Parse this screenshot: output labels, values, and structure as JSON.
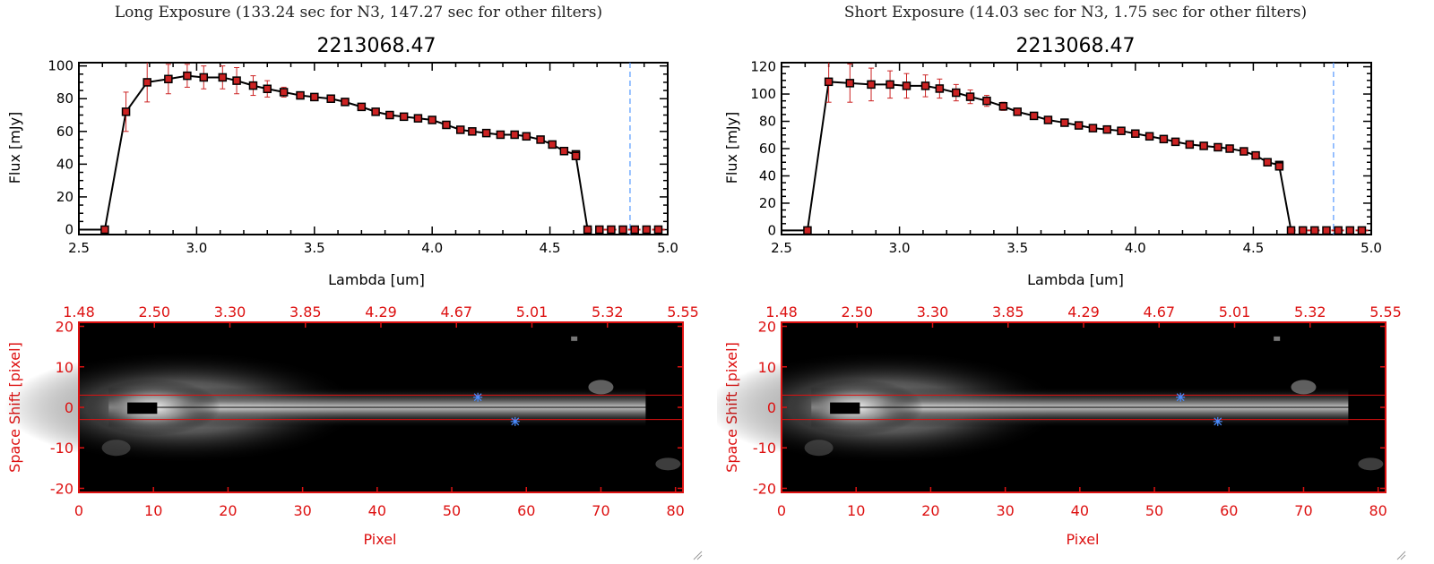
{
  "panels": [
    {
      "header": "Long Exposure (133.24 sec for N3, 147.27 sec for other filters)",
      "spectrum": {
        "title": "2213068.47",
        "xlabel": "Lambda [um]",
        "ylabel": "Flux [mJy]",
        "xticks": [
          "2.5",
          "3.0",
          "3.5",
          "4.0",
          "4.5",
          "5.0"
        ],
        "yticks": [
          "0",
          "20",
          "40",
          "60",
          "80",
          "100"
        ]
      },
      "image": {
        "top_ticks": [
          "1.48",
          "2.50",
          "3.30",
          "3.85",
          "4.29",
          "4.67",
          "5.01",
          "5.32",
          "5.55"
        ],
        "xticks": [
          "0",
          "10",
          "20",
          "30",
          "40",
          "50",
          "60",
          "70",
          "80"
        ],
        "yticks": [
          "20",
          "10",
          "0",
          "-10",
          "-20"
        ],
        "xlabel": "Pixel",
        "ylabel": "Space Shift [pixel]"
      }
    },
    {
      "header": "Short Exposure (14.03 sec for N3, 1.75 sec for other filters)",
      "spectrum": {
        "title": "2213068.47",
        "xlabel": "Lambda [um]",
        "ylabel": "Flux [mJy]",
        "xticks": [
          "2.5",
          "3.0",
          "3.5",
          "4.0",
          "4.5",
          "5.0"
        ],
        "yticks": [
          "0",
          "20",
          "40",
          "60",
          "80",
          "100",
          "120"
        ]
      },
      "image": {
        "top_ticks": [
          "1.48",
          "2.50",
          "3.30",
          "3.85",
          "4.29",
          "4.67",
          "5.01",
          "5.32",
          "5.55"
        ],
        "xticks": [
          "0",
          "10",
          "20",
          "30",
          "40",
          "50",
          "60",
          "70",
          "80"
        ],
        "yticks": [
          "20",
          "10",
          "0",
          "-10",
          "-20"
        ],
        "xlabel": "Pixel",
        "ylabel": "Space Shift [pixel]"
      }
    }
  ],
  "colors": {
    "axis_red": "#dd1111",
    "marker": "#cc2222",
    "line": "#000000",
    "dash": "#5599ff"
  },
  "chart_data": [
    {
      "type": "line",
      "title": "2213068.47",
      "xlabel": "Lambda [um]",
      "ylabel": "Flux [mJy]",
      "xlim": [
        2.5,
        5.0
      ],
      "ylim": [
        -3,
        102
      ],
      "vline": 4.84,
      "x": [
        2.5,
        2.61,
        2.7,
        2.79,
        2.88,
        2.96,
        3.03,
        3.11,
        3.17,
        3.24,
        3.3,
        3.37,
        3.44,
        3.5,
        3.57,
        3.63,
        3.7,
        3.76,
        3.82,
        3.88,
        3.94,
        4.0,
        4.06,
        4.12,
        4.17,
        4.23,
        4.29,
        4.35,
        4.4,
        4.46,
        4.51,
        4.56,
        4.61,
        4.61,
        4.66,
        4.71,
        4.76,
        4.81,
        4.86,
        4.91,
        4.96,
        5.0
      ],
      "y": [
        0,
        0,
        72,
        90,
        92,
        94,
        93,
        93,
        91,
        88,
        86,
        84,
        82,
        81,
        80,
        78,
        75,
        72,
        70,
        69,
        68,
        67,
        64,
        61,
        60,
        59,
        58,
        58,
        57,
        55,
        52,
        48,
        46,
        45,
        0,
        0,
        0,
        0,
        0,
        0,
        0,
        0
      ],
      "err": [
        0,
        0,
        12,
        12,
        9,
        7,
        7,
        7,
        8,
        6,
        5,
        3,
        2,
        2,
        1,
        1,
        1,
        1,
        1,
        1,
        1,
        1,
        1,
        1,
        1,
        1,
        1,
        1,
        1,
        1,
        1,
        1,
        1,
        1,
        0,
        0,
        0,
        0,
        0,
        0,
        0,
        0
      ]
    },
    {
      "type": "line",
      "title": "2213068.47",
      "xlabel": "Lambda [um]",
      "ylabel": "Flux [mJy]",
      "xlim": [
        2.5,
        5.0
      ],
      "ylim": [
        -3,
        123
      ],
      "vline": 4.84,
      "x": [
        2.5,
        2.61,
        2.7,
        2.79,
        2.88,
        2.96,
        3.03,
        3.11,
        3.17,
        3.24,
        3.3,
        3.37,
        3.44,
        3.5,
        3.57,
        3.63,
        3.7,
        3.76,
        3.82,
        3.88,
        3.94,
        4.0,
        4.06,
        4.12,
        4.17,
        4.23,
        4.29,
        4.35,
        4.4,
        4.46,
        4.51,
        4.56,
        4.61,
        4.61,
        4.66,
        4.71,
        4.76,
        4.81,
        4.86,
        4.91,
        4.96,
        5.0
      ],
      "y": [
        0,
        0,
        109,
        108,
        107,
        107,
        106,
        106,
        104,
        101,
        98,
        95,
        91,
        87,
        84,
        81,
        79,
        77,
        75,
        74,
        73,
        71,
        69,
        67,
        65,
        63,
        62,
        61,
        60,
        58,
        55,
        50,
        48,
        47,
        0,
        0,
        0,
        0,
        0,
        0,
        0,
        0
      ],
      "err": [
        0,
        0,
        15,
        14,
        12,
        10,
        9,
        8,
        7,
        6,
        5,
        4,
        3,
        2,
        1,
        1,
        1,
        1,
        1,
        1,
        1,
        1,
        1,
        1,
        1,
        1,
        1,
        1,
        1,
        1,
        1,
        1,
        1,
        1,
        0,
        0,
        0,
        0,
        0,
        0,
        0,
        0
      ]
    }
  ]
}
